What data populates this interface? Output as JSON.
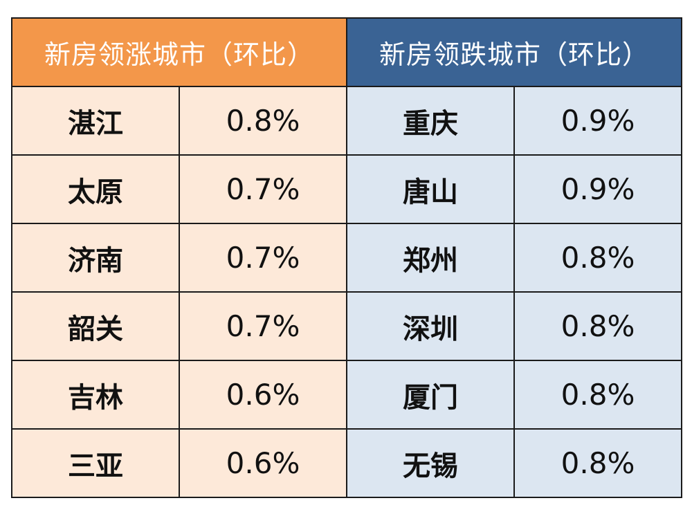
{
  "chart_data": {
    "type": "table",
    "left": {
      "header": "新房领涨城市（环比）",
      "color": "#f3974a",
      "rows": [
        {
          "city": "湛江",
          "value": "0.8%"
        },
        {
          "city": "太原",
          "value": "0.7%"
        },
        {
          "city": "济南",
          "value": "0.7%"
        },
        {
          "city": "韶关",
          "value": "0.7%"
        },
        {
          "city": "吉林",
          "value": "0.6%"
        },
        {
          "city": "三亚",
          "value": "0.6%"
        }
      ]
    },
    "right": {
      "header": "新房领跌城市（环比）",
      "color": "#3a6394",
      "rows": [
        {
          "city": "重庆",
          "value": "0.9%"
        },
        {
          "city": "唐山",
          "value": "0.9%"
        },
        {
          "city": "郑州",
          "value": "0.8%"
        },
        {
          "city": "深圳",
          "value": "0.8%"
        },
        {
          "city": "厦门",
          "value": "0.8%"
        },
        {
          "city": "无锡",
          "value": "0.8%"
        }
      ]
    }
  }
}
